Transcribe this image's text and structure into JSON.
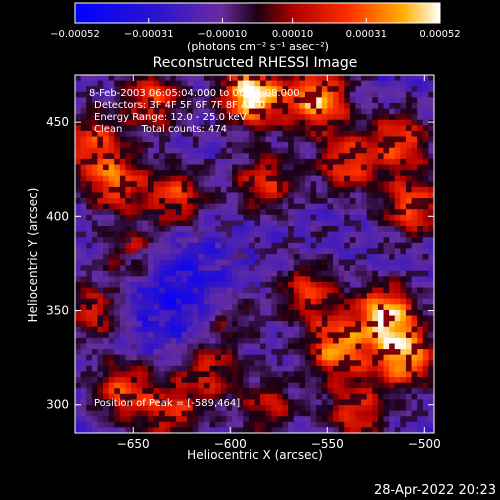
{
  "chart_data": {
    "type": "heatmap",
    "title": "Reconstructed RHESSI Image",
    "xlabel": "Heliocentric X (arcsec)",
    "ylabel": "Heliocentric Y (arcsec)",
    "xlim": [
      -680,
      -495
    ],
    "ylim": [
      285,
      475
    ],
    "x_ticks": [
      -650,
      -600,
      -550,
      -500
    ],
    "y_ticks": [
      300,
      350,
      400,
      450
    ],
    "colorbar": {
      "range": [
        -0.00052,
        0.00052
      ],
      "tick_labels": [
        "-0.00052",
        "-0.00031",
        "-0.00010",
        "0.00010",
        "0.00031",
        "0.00052"
      ],
      "units_label": "(photons cm⁻² s⁻¹ asec⁻²)"
    },
    "annotations": [
      "8-Feb-2003 06:05:04.000 to 06:06:08.000",
      "Detectors: 3F 4F 5F 6F 7F 8F Att 0",
      "Energy Range: 12.0 - 25.0 keV",
      "Clean      Total counts: 474"
    ],
    "peak_label": "Position of Peak = [-589,464]",
    "peak": [
      -589,
      464
    ],
    "hotspots": [
      {
        "x": -589,
        "y": 464,
        "v": 1.0
      },
      {
        "x": -555,
        "y": 462,
        "v": 0.85
      },
      {
        "x": -640,
        "y": 462,
        "v": 0.6
      },
      {
        "x": -660,
        "y": 418,
        "v": 0.65
      },
      {
        "x": -672,
        "y": 440,
        "v": 0.55
      },
      {
        "x": -628,
        "y": 410,
        "v": 0.6
      },
      {
        "x": -582,
        "y": 418,
        "v": 0.55
      },
      {
        "x": -540,
        "y": 428,
        "v": 0.6
      },
      {
        "x": -512,
        "y": 440,
        "v": 0.6
      },
      {
        "x": -506,
        "y": 405,
        "v": 0.65
      },
      {
        "x": -650,
        "y": 380,
        "v": 0.5
      },
      {
        "x": -670,
        "y": 350,
        "v": 0.55
      },
      {
        "x": -520,
        "y": 348,
        "v": 0.85
      },
      {
        "x": -545,
        "y": 330,
        "v": 0.75
      },
      {
        "x": -510,
        "y": 325,
        "v": 0.8
      },
      {
        "x": -560,
        "y": 360,
        "v": 0.55
      },
      {
        "x": -612,
        "y": 318,
        "v": 0.5
      },
      {
        "x": -655,
        "y": 308,
        "v": 0.6
      },
      {
        "x": -630,
        "y": 295,
        "v": 0.5
      },
      {
        "x": -580,
        "y": 300,
        "v": 0.45
      },
      {
        "x": -535,
        "y": 296,
        "v": 0.55
      },
      {
        "x": -600,
        "y": 345,
        "v": 0.35
      }
    ]
  },
  "footer": {
    "timestamp": "28-Apr-2022 20:23"
  }
}
